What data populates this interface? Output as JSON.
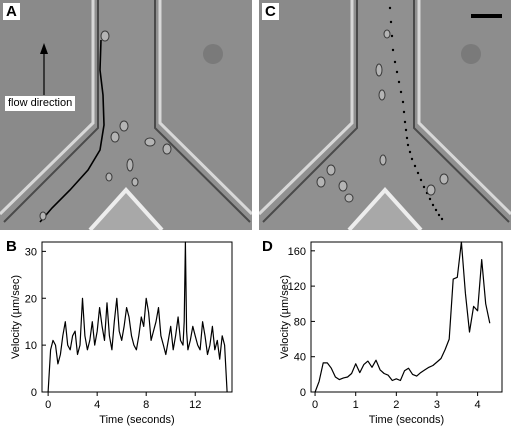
{
  "panels": {
    "A": {
      "letter": "A",
      "annotation": "flow direction"
    },
    "B": {
      "letter": "B"
    },
    "C": {
      "letter": "C"
    },
    "D": {
      "letter": "D"
    }
  },
  "chart_data": [
    {
      "panel": "B",
      "type": "line",
      "xlabel": "Time (seconds)",
      "ylabel": "Velocity (µm/sec)",
      "xlim": [
        -0.5,
        15
      ],
      "ylim": [
        0,
        32
      ],
      "xticks": [
        0,
        4,
        8,
        12
      ],
      "yticks": [
        0,
        10,
        20,
        30
      ],
      "x": [
        0.0,
        0.2,
        0.4,
        0.6,
        0.8,
        1.0,
        1.2,
        1.4,
        1.6,
        1.8,
        2.0,
        2.2,
        2.4,
        2.6,
        2.8,
        3.0,
        3.2,
        3.4,
        3.6,
        3.8,
        4.0,
        4.2,
        4.4,
        4.6,
        4.8,
        5.0,
        5.2,
        5.4,
        5.6,
        5.8,
        6.0,
        6.2,
        6.4,
        6.6,
        6.8,
        7.0,
        7.2,
        7.4,
        7.6,
        7.8,
        8.0,
        8.2,
        8.4,
        8.6,
        8.8,
        9.0,
        9.2,
        9.4,
        9.6,
        9.8,
        10.0,
        10.2,
        10.4,
        10.6,
        10.8,
        11.0,
        11.1,
        11.2,
        11.3,
        11.4,
        11.6,
        11.8,
        12.0,
        12.2,
        12.4,
        12.6,
        12.8,
        13.0,
        13.2,
        13.4,
        13.6,
        13.8,
        14.0,
        14.2,
        14.4,
        14.6
      ],
      "y": [
        0,
        9,
        11,
        10,
        6,
        8,
        12,
        15,
        10,
        9,
        12,
        13,
        8,
        10,
        20,
        12,
        9,
        11,
        15,
        10,
        13,
        18,
        14,
        11,
        19,
        12,
        9,
        15,
        20,
        13,
        11,
        14,
        18,
        16,
        12,
        10,
        9,
        12,
        16,
        14,
        20,
        17,
        11,
        13,
        15,
        18,
        12,
        10,
        8,
        11,
        14,
        9,
        12,
        16,
        11,
        10,
        15,
        32,
        13,
        9,
        11,
        14,
        12,
        10,
        9,
        15,
        12,
        8,
        10,
        14,
        9,
        11,
        7,
        12,
        10,
        0
      ]
    },
    {
      "panel": "D",
      "type": "line",
      "xlabel": "Time (seconds)",
      "ylabel": "Velocity (µm/sec)",
      "xlim": [
        -0.1,
        4.6
      ],
      "ylim": [
        0,
        170
      ],
      "xticks": [
        0,
        1,
        2,
        3,
        4
      ],
      "yticks": [
        0,
        40,
        80,
        120,
        160
      ],
      "x": [
        0.0,
        0.1,
        0.2,
        0.3,
        0.4,
        0.5,
        0.6,
        0.7,
        0.8,
        0.9,
        1.0,
        1.1,
        1.2,
        1.3,
        1.4,
        1.5,
        1.6,
        1.7,
        1.8,
        1.9,
        2.0,
        2.1,
        2.2,
        2.3,
        2.4,
        2.5,
        2.6,
        2.7,
        2.8,
        2.9,
        3.0,
        3.1,
        3.2,
        3.3,
        3.4,
        3.5,
        3.6,
        3.7,
        3.8,
        3.9,
        4.0,
        4.1,
        4.2,
        4.3
      ],
      "y": [
        0,
        12,
        33,
        33,
        27,
        17,
        14,
        16,
        17,
        21,
        32,
        22,
        31,
        35,
        28,
        36,
        25,
        21,
        19,
        13,
        15,
        13,
        24,
        27,
        20,
        18,
        22,
        25,
        28,
        30,
        34,
        38,
        48,
        60,
        128,
        130,
        170,
        112,
        68,
        97,
        92,
        150,
        100,
        78
      ]
    }
  ]
}
